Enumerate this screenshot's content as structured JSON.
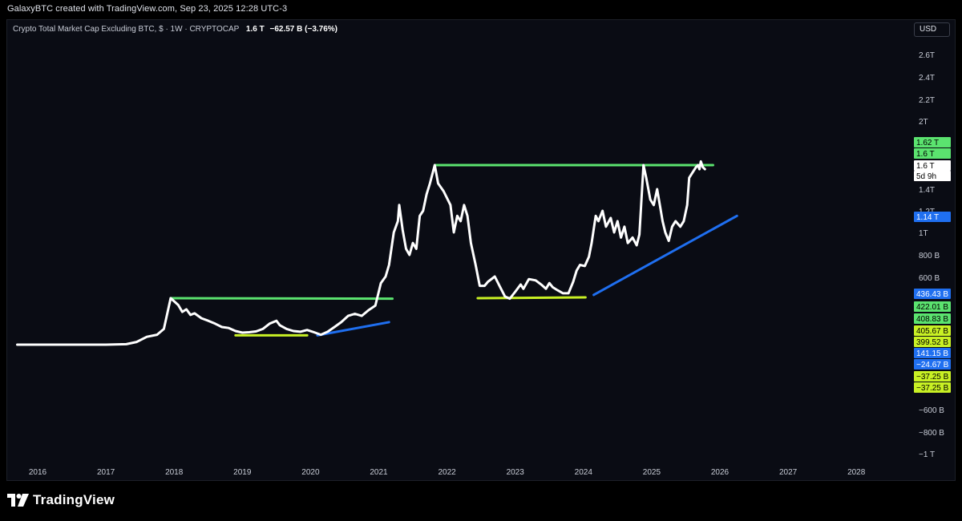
{
  "header": {
    "credit": "GalaxyBTC created with TradingView.com, Sep 23, 2025 12:28 UTC-3"
  },
  "legend": {
    "symbol": "Crypto Total Market Cap Excluding BTC, $ · 1W · CRYPTOCAP",
    "price": "1.6 T",
    "change": "−62.57 B (−3.76%)"
  },
  "currency_button": "USD",
  "footer": {
    "brand": "TradingView"
  },
  "colors": {
    "background": "#0a0c14",
    "price_line": "#ffffff",
    "resistance": "#5be36f",
    "support": "#c8f024",
    "trend": "#1f6ff0"
  },
  "chart_data": {
    "type": "line",
    "title": "Crypto Total Market Cap Excluding BTC",
    "xlabel": "",
    "ylabel": "",
    "x_ticks": [
      "2016",
      "2017",
      "2018",
      "2019",
      "2020",
      "2021",
      "2022",
      "2023",
      "2024",
      "2025",
      "2026",
      "2027",
      "2028"
    ],
    "y_ticks": [
      "2.6T",
      "2.4T",
      "2.2T",
      "2T",
      "1.4T",
      "1.2T",
      "1T",
      "800 B",
      "600 B",
      "−600 B",
      "−800 B",
      "−1 T"
    ],
    "series": [
      {
        "values": [
          [
            2015.7,
            15
          ],
          [
            2016.5,
            15
          ],
          [
            2017.0,
            15
          ],
          [
            2017.3,
            16
          ],
          [
            2017.45,
            22
          ],
          [
            2017.6,
            45
          ],
          [
            2017.75,
            60
          ],
          [
            2017.85,
            110
          ],
          [
            2017.95,
            450
          ],
          [
            2018.0,
            390
          ],
          [
            2018.06,
            330
          ],
          [
            2018.12,
            240
          ],
          [
            2018.18,
            270
          ],
          [
            2018.24,
            210
          ],
          [
            2018.3,
            225
          ],
          [
            2018.4,
            180
          ],
          [
            2018.5,
            160
          ],
          [
            2018.6,
            140
          ],
          [
            2018.7,
            120
          ],
          [
            2018.8,
            115
          ],
          [
            2018.9,
            100
          ],
          [
            2019.0,
            80
          ],
          [
            2019.1,
            85
          ],
          [
            2019.2,
            95
          ],
          [
            2019.3,
            110
          ],
          [
            2019.4,
            140
          ],
          [
            2019.5,
            160
          ],
          [
            2019.55,
            130
          ],
          [
            2019.65,
            110
          ],
          [
            2019.75,
            100
          ],
          [
            2019.85,
            90
          ],
          [
            2019.95,
            105
          ],
          [
            2020.05,
            85
          ],
          [
            2020.15,
            60
          ],
          [
            2020.25,
            90
          ],
          [
            2020.35,
            120
          ],
          [
            2020.45,
            150
          ],
          [
            2020.55,
            200
          ],
          [
            2020.65,
            220
          ],
          [
            2020.75,
            200
          ],
          [
            2020.85,
            260
          ],
          [
            2020.95,
            320
          ],
          [
            2021.03,
            550
          ],
          [
            2021.1,
            600
          ],
          [
            2021.15,
            700
          ],
          [
            2021.22,
            1000
          ],
          [
            2021.28,
            1100
          ],
          [
            2021.3,
            1250
          ],
          [
            2021.35,
            1020
          ],
          [
            2021.4,
            850
          ],
          [
            2021.45,
            800
          ],
          [
            2021.5,
            900
          ],
          [
            2021.55,
            850
          ],
          [
            2021.6,
            1150
          ],
          [
            2021.65,
            1200
          ],
          [
            2021.7,
            1350
          ],
          [
            2021.75,
            1450
          ],
          [
            2021.82,
            1620
          ],
          [
            2021.87,
            1450
          ],
          [
            2021.95,
            1380
          ],
          [
            2022.05,
            1250
          ],
          [
            2022.1,
            1000
          ],
          [
            2022.15,
            1150
          ],
          [
            2022.2,
            1100
          ],
          [
            2022.25,
            1250
          ],
          [
            2022.3,
            1150
          ],
          [
            2022.35,
            900
          ],
          [
            2022.42,
            700
          ],
          [
            2022.48,
            530
          ],
          [
            2022.55,
            530
          ],
          [
            2022.6,
            560
          ],
          [
            2022.7,
            600
          ],
          [
            2022.78,
            520
          ],
          [
            2022.85,
            460
          ],
          [
            2022.92,
            440
          ],
          [
            2023.0,
            490
          ],
          [
            2023.08,
            540
          ],
          [
            2023.12,
            510
          ],
          [
            2023.2,
            580
          ],
          [
            2023.3,
            570
          ],
          [
            2023.38,
            540
          ],
          [
            2023.45,
            510
          ],
          [
            2023.5,
            550
          ],
          [
            2023.55,
            520
          ],
          [
            2023.62,
            500
          ],
          [
            2023.7,
            480
          ],
          [
            2023.78,
            480
          ],
          [
            2023.85,
            560
          ],
          [
            2023.9,
            650
          ],
          [
            2023.95,
            700
          ],
          [
            2024.02,
            690
          ],
          [
            2024.08,
            780
          ],
          [
            2024.12,
            900
          ],
          [
            2024.18,
            1150
          ],
          [
            2024.22,
            1100
          ],
          [
            2024.28,
            1200
          ],
          [
            2024.33,
            1050
          ],
          [
            2024.4,
            1130
          ],
          [
            2024.45,
            1000
          ],
          [
            2024.5,
            1100
          ],
          [
            2024.55,
            950
          ],
          [
            2024.6,
            1050
          ],
          [
            2024.65,
            900
          ],
          [
            2024.72,
            950
          ],
          [
            2024.78,
            880
          ],
          [
            2024.82,
            980
          ],
          [
            2024.88,
            1620
          ],
          [
            2024.92,
            1500
          ],
          [
            2024.98,
            1300
          ],
          [
            2025.03,
            1250
          ],
          [
            2025.08,
            1400
          ],
          [
            2025.12,
            1250
          ],
          [
            2025.16,
            1100
          ],
          [
            2025.2,
            1000
          ],
          [
            2025.25,
            920
          ],
          [
            2025.3,
            1050
          ],
          [
            2025.35,
            1100
          ],
          [
            2025.42,
            1050
          ],
          [
            2025.47,
            1100
          ],
          [
            2025.52,
            1250
          ],
          [
            2025.55,
            1500
          ],
          [
            2025.6,
            1550
          ],
          [
            2025.65,
            1600
          ],
          [
            2025.68,
            1620
          ],
          [
            2025.7,
            1580
          ],
          [
            2025.72,
            1650
          ],
          [
            2025.75,
            1600
          ],
          [
            2025.78,
            1580
          ]
        ]
      }
    ],
    "annotations": [
      {
        "type": "resistance",
        "from": [
          2017.95,
          450
        ],
        "to": [
          2021.2,
          440
        ]
      },
      {
        "type": "resistance",
        "from": [
          2021.82,
          1620
        ],
        "to": [
          2025.9,
          1620
        ]
      },
      {
        "type": "support",
        "from": [
          2018.9,
          55
        ],
        "to": [
          2019.95,
          55
        ]
      },
      {
        "type": "support",
        "from": [
          2022.45,
          450
        ],
        "to": [
          2024.03,
          455
        ]
      },
      {
        "type": "trend",
        "from": [
          2020.1,
          55
        ],
        "to": [
          2021.15,
          150
        ]
      },
      {
        "type": "trend",
        "from": [
          2024.15,
          470
        ],
        "to": [
          2026.25,
          1150
        ]
      }
    ],
    "price_labels": [
      {
        "text": "1.62 T",
        "kind": "resistance"
      },
      {
        "text": "1.6 T",
        "kind": "resistance"
      },
      {
        "text": "1.6 T",
        "kind": "current"
      },
      {
        "text": "5d 9h",
        "kind": "countdown"
      },
      {
        "text": "1.14 T",
        "kind": "trend"
      },
      {
        "text": "436.43 B",
        "kind": "trend"
      },
      {
        "text": "422.01 B",
        "kind": "resistance"
      },
      {
        "text": "408.83 B",
        "kind": "resistance"
      },
      {
        "text": "405.67 B",
        "kind": "support"
      },
      {
        "text": "399.52 B",
        "kind": "support"
      },
      {
        "text": "141.15 B",
        "kind": "trend"
      },
      {
        "text": "−24.67 B",
        "kind": "trend"
      },
      {
        "text": "−37.25 B",
        "kind": "support"
      },
      {
        "text": "−37.25 B",
        "kind": "support"
      }
    ]
  }
}
